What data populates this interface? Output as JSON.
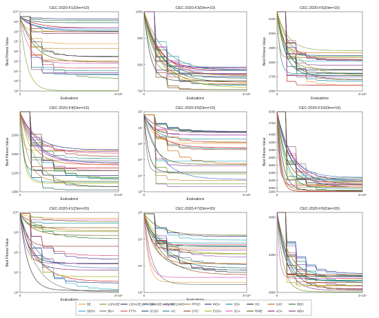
{
  "chart_data": [
    {
      "type": "line",
      "title": "CEC-2020-F1(Dim=10)",
      "xlabel": "Evaluations",
      "ylabel": "Best Fitness Value",
      "yscale": "log",
      "xticks": [
        "0",
        "3×10⁴"
      ],
      "yticks": [
        "10²",
        "10³",
        "10⁴",
        "10⁵",
        "10⁶",
        "10⁷",
        "10⁸",
        "10⁹",
        "10¹⁰"
      ],
      "ylim": [
        100,
        10000000000
      ],
      "start": 9.5,
      "end_range": [
        2,
        9.3
      ]
    },
    {
      "type": "line",
      "title": "CEC-2020-F3(Dim=10)",
      "xlabel": "Evaluations",
      "ylabel": "",
      "yscale": "linear",
      "xticks": [
        "0",
        "3×10⁴"
      ],
      "yticks": [
        "700",
        "800",
        "900",
        "1000"
      ],
      "ylim": [
        700,
        1000
      ],
      "start": 1000,
      "end_range": [
        705,
        795
      ]
    },
    {
      "type": "line",
      "title": "CEC-2020-F6(Dim=10)",
      "xlabel": "Evaluations",
      "ylabel": "Best Fitness Value",
      "yscale": "linear",
      "xticks": [
        "0",
        "3×10⁴"
      ],
      "yticks": [
        "1600",
        "1700",
        "1800",
        "1900",
        "2000",
        "2100"
      ],
      "ylim": [
        1600,
        2150
      ],
      "start": 2150,
      "end_range": [
        1605,
        1900
      ]
    },
    {
      "type": "line",
      "title": "CEC-2020-F4(Dim=15)",
      "xlabel": "Evaluations",
      "ylabel": "Best Fitness Value",
      "yscale": "linear",
      "xticks": [
        "0",
        "3×10⁴"
      ],
      "yticks": [
        "1900",
        "2100",
        "2300",
        "2500"
      ],
      "ylim": [
        1900,
        2750
      ],
      "start": 2750,
      "end_range": [
        1902,
        2350
      ]
    },
    {
      "type": "line",
      "title": "CEC-2020-F5(Dim=15)",
      "xlabel": "Evaluations",
      "ylabel": "",
      "yscale": "log",
      "xticks": [
        "0",
        "3×10⁴"
      ],
      "yticks": [
        "10³",
        "10⁴",
        "10⁵",
        "10⁶",
        "10⁷",
        "10⁸"
      ],
      "ylim": [
        1000,
        100000000
      ],
      "start": 7.8,
      "end_range": [
        3.3,
        6.8
      ]
    },
    {
      "type": "line",
      "title": "CEC-2020-F10(Dim=15)",
      "xlabel": "",
      "ylabel": "Best Fitness Value",
      "yscale": "linear",
      "xticks": [
        "0",
        "3×10⁴"
      ],
      "yticks": [
        "2900",
        "3000",
        "3200",
        "3400",
        "3600",
        "3800",
        "4000",
        "4200",
        "4400",
        "4700",
        "5000"
      ],
      "ylim": [
        2900,
        5000
      ],
      "start": 5000,
      "end_range": [
        2905,
        3300
      ]
    },
    {
      "type": "line",
      "title": "CEC-2020-F1(Dim=20)",
      "xlabel": "Evaluations",
      "ylabel": "Best Fitness Value",
      "yscale": "log",
      "xticks": [
        "0",
        "3×10⁴"
      ],
      "yticks": [
        "10²",
        "10⁴",
        "10⁶",
        "10⁸",
        "10¹⁰"
      ],
      "ylim": [
        100,
        10000000000
      ],
      "start": 9.9,
      "end_range": [
        2,
        9.7
      ]
    },
    {
      "type": "line",
      "title": "CEC-2020-F7(Dim=20)",
      "xlabel": "Evaluations",
      "ylabel": "",
      "yscale": "log",
      "xticks": [
        "0",
        "3×10⁴"
      ],
      "yticks": [
        "10²",
        "10⁴",
        "10⁶",
        "10⁸"
      ],
      "ylim": [
        100,
        100000000
      ],
      "start": 7.9,
      "end_range": [
        2.5,
        6.3
      ]
    },
    {
      "type": "line",
      "title": "CEC-2020-F9(Dim=20)",
      "xlabel": "",
      "ylabel": "",
      "yscale": "linear",
      "xticks": [
        "0",
        "3×10⁴"
      ],
      "yticks": [
        "2800",
        "3200",
        "3600"
      ],
      "ylim": [
        2800,
        3650
      ],
      "start": 3650,
      "end_range": [
        2805,
        3000
      ]
    }
  ],
  "colors": [
    "#e8a33a",
    "#3b3b8f",
    "#6d9e2f",
    "#2a3f8c",
    "#8c2f6d",
    "#2f8c8c",
    "#cc2222",
    "#7a7a7a",
    "#1e90a0",
    "#9b5ec0",
    "#b5b520",
    "#d4506a",
    "#2e7a3e",
    "#5577cc",
    "#a05030",
    "#30b0c0",
    "#c08030",
    "#6a6a20",
    "#e060c0",
    "#206060",
    "#904090",
    "#80b040",
    "#cc6600",
    "#404040"
  ],
  "legend": {
    "entries": [
      "DE",
      "LSHADE",
      "LSHADE_SPACMA",
      "LSHADE-cnEpSin",
      "MELSWO",
      "PPSO",
      "WOA",
      "SSA",
      "HO",
      "GJO",
      "DBO",
      "SBOA",
      "BKA",
      "FTTA",
      "SCSO",
      "AO",
      "GTO",
      "EVOA",
      "SCA",
      "RIME",
      "AOA",
      "WBA"
    ],
    "colors": [
      "#e8a33a",
      "#6d9e2f",
      "#3b3b8f",
      "#5577cc",
      "#9b5ec0",
      "#c08030",
      "#2a3f8c",
      "#1e90a0",
      "#404040",
      "#cc6600",
      "#2e7a3e",
      "#30b0c0",
      "#7a7a7a",
      "#d4506a",
      "#206060",
      "#2f8c8c",
      "#a05030",
      "#b5b520",
      "#e060c0",
      "#6a6a20",
      "#8c2f6d",
      "#904090"
    ]
  }
}
